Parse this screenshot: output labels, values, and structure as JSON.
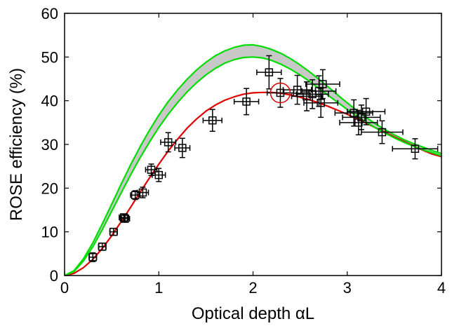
{
  "chart_data": {
    "type": "scatter",
    "xlabel": "Optical depth αL",
    "ylabel": "ROSE efficiency (%)",
    "xlim": [
      0,
      4
    ],
    "ylim": [
      0,
      60
    ],
    "xticks": [
      0,
      1,
      2,
      3,
      4
    ],
    "yticks": [
      0,
      10,
      20,
      30,
      40,
      50,
      60
    ],
    "grid": false,
    "colors": {
      "data": "#000000",
      "fit": "#e00000",
      "bound": "#00dd00",
      "band_fill": "#c8c8c8",
      "highlight": "#e00000"
    },
    "series": [
      {
        "kind": "points",
        "marker": "square",
        "points": [
          {
            "x": 0.3,
            "y": 4.2,
            "xerr": 0.04,
            "yerr": 1.0
          },
          {
            "x": 0.4,
            "y": 6.6,
            "xerr": 0.04,
            "yerr": 0.8
          },
          {
            "x": 0.52,
            "y": 10.0,
            "xerr": 0.04,
            "yerr": 0.8
          },
          {
            "x": 0.63,
            "y": 13.3,
            "xerr": 0.05,
            "yerr": 0.8
          },
          {
            "x": 0.64,
            "y": 13.0,
            "xerr": 0.05,
            "yerr": 0.8
          },
          {
            "x": 0.75,
            "y": 18.4,
            "xerr": 0.05,
            "yerr": 1.0
          },
          {
            "x": 0.83,
            "y": 19.0,
            "xerr": 0.06,
            "yerr": 1.2
          },
          {
            "x": 0.92,
            "y": 24.2,
            "xerr": 0.06,
            "yerr": 1.3
          },
          {
            "x": 1.0,
            "y": 23.0,
            "xerr": 0.07,
            "yerr": 1.5
          },
          {
            "x": 1.1,
            "y": 30.5,
            "xerr": 0.08,
            "yerr": 2.2
          },
          {
            "x": 1.25,
            "y": 29.2,
            "xerr": 0.08,
            "yerr": 2.2
          },
          {
            "x": 1.57,
            "y": 35.5,
            "xerr": 0.1,
            "yerr": 2.5
          },
          {
            "x": 1.93,
            "y": 39.8,
            "xerr": 0.13,
            "yerr": 3.0
          },
          {
            "x": 2.17,
            "y": 46.5,
            "xerr": 0.13,
            "yerr": 3.8
          },
          {
            "x": 2.29,
            "y": 41.8,
            "xerr": 0.14,
            "yerr": 3.3
          },
          {
            "x": 2.47,
            "y": 42.5,
            "xerr": 0.15,
            "yerr": 3.3
          },
          {
            "x": 2.57,
            "y": 41.0,
            "xerr": 0.16,
            "yerr": 3.3
          },
          {
            "x": 2.63,
            "y": 41.5,
            "xerr": 0.17,
            "yerr": 3.3
          },
          {
            "x": 2.7,
            "y": 42.2,
            "xerr": 0.18,
            "yerr": 3.5
          },
          {
            "x": 2.72,
            "y": 39.5,
            "xerr": 0.18,
            "yerr": 3.3
          },
          {
            "x": 2.74,
            "y": 43.8,
            "xerr": 0.18,
            "yerr": 3.3
          },
          {
            "x": 3.07,
            "y": 37.2,
            "xerr": 0.2,
            "yerr": 3.0
          },
          {
            "x": 3.12,
            "y": 35.0,
            "xerr": 0.2,
            "yerr": 2.8
          },
          {
            "x": 3.15,
            "y": 36.2,
            "xerr": 0.2,
            "yerr": 2.8
          },
          {
            "x": 3.2,
            "y": 37.5,
            "xerr": 0.2,
            "yerr": 3.0
          },
          {
            "x": 3.37,
            "y": 32.8,
            "xerr": 0.22,
            "yerr": 2.6
          },
          {
            "x": 3.72,
            "y": 29.0,
            "xerr": 0.24,
            "yerr": 2.3
          }
        ]
      },
      {
        "kind": "curve",
        "role": "fit",
        "x": [
          0,
          0.1,
          0.2,
          0.3,
          0.4,
          0.5,
          0.6,
          0.7,
          0.8,
          0.9,
          1.0,
          1.1,
          1.2,
          1.3,
          1.4,
          1.5,
          1.6,
          1.7,
          1.8,
          1.9,
          2.0,
          2.1,
          2.2,
          2.3,
          2.4,
          2.5,
          2.6,
          2.7,
          2.8,
          2.9,
          3.0,
          3.1,
          3.2,
          3.3,
          3.4,
          3.5,
          3.6,
          3.7,
          3.8,
          3.9,
          4.0
        ],
        "y": [
          0,
          0.5,
          1.8,
          3.7,
          6.2,
          9.1,
          12.3,
          15.6,
          19.0,
          22.3,
          25.5,
          28.5,
          31.2,
          33.7,
          35.8,
          37.6,
          39.0,
          40.1,
          40.9,
          41.5,
          41.8,
          41.9,
          41.9,
          41.7,
          41.3,
          40.8,
          40.2,
          39.5,
          38.7,
          37.8,
          36.9,
          35.9,
          34.9,
          33.8,
          32.8,
          31.7,
          30.7,
          29.7,
          28.7,
          27.8,
          27.2
        ]
      },
      {
        "kind": "curve",
        "role": "upper-bound",
        "x": [
          0,
          0.1,
          0.2,
          0.3,
          0.4,
          0.5,
          0.6,
          0.7,
          0.8,
          0.9,
          1.0,
          1.1,
          1.2,
          1.3,
          1.4,
          1.5,
          1.6,
          1.7,
          1.8,
          1.9,
          2.0,
          2.1,
          2.2,
          2.3,
          2.4,
          2.5,
          2.6,
          2.7,
          2.8,
          2.9,
          3.0,
          3.1,
          3.2,
          3.3,
          3.4,
          3.5,
          3.6,
          3.7,
          3.8,
          3.9,
          4.0
        ],
        "y": [
          0,
          1.1,
          3.8,
          7.5,
          11.8,
          16.3,
          20.9,
          25.3,
          29.4,
          33.2,
          36.7,
          39.8,
          42.5,
          44.9,
          47.0,
          48.8,
          50.3,
          51.4,
          52.2,
          52.7,
          52.8,
          52.4,
          51.7,
          50.8,
          49.6,
          48.2,
          46.6,
          44.9,
          43.1,
          41.3,
          39.5,
          37.8,
          36.2,
          34.7,
          33.4,
          32.2,
          31.1,
          30.2,
          29.4,
          28.6,
          27.9
        ]
      },
      {
        "kind": "curve",
        "role": "lower-bound",
        "x": [
          0,
          0.1,
          0.2,
          0.3,
          0.4,
          0.5,
          0.6,
          0.7,
          0.8,
          0.9,
          1.0,
          1.1,
          1.2,
          1.3,
          1.4,
          1.5,
          1.6,
          1.7,
          1.8,
          1.9,
          2.0,
          2.1,
          2.2,
          2.3,
          2.4,
          2.5,
          2.6,
          2.7,
          2.8,
          2.9,
          3.0,
          3.1,
          3.2,
          3.3,
          3.4,
          3.5,
          3.6,
          3.7,
          3.8,
          3.9,
          4.0
        ],
        "y": [
          0,
          0.9,
          3.3,
          6.6,
          10.5,
          14.7,
          18.9,
          23.0,
          26.9,
          30.5,
          33.9,
          36.9,
          39.6,
          42.0,
          44.1,
          45.9,
          47.4,
          48.6,
          49.4,
          49.9,
          50.0,
          49.8,
          49.2,
          48.3,
          47.2,
          45.9,
          44.4,
          42.8,
          41.2,
          39.6,
          38.0,
          36.5,
          35.1,
          33.8,
          32.6,
          31.5,
          30.5,
          29.6,
          28.8,
          28.1,
          27.4
        ]
      }
    ],
    "highlight": {
      "x": 2.29,
      "y": 41.8,
      "marker": "circle"
    }
  }
}
